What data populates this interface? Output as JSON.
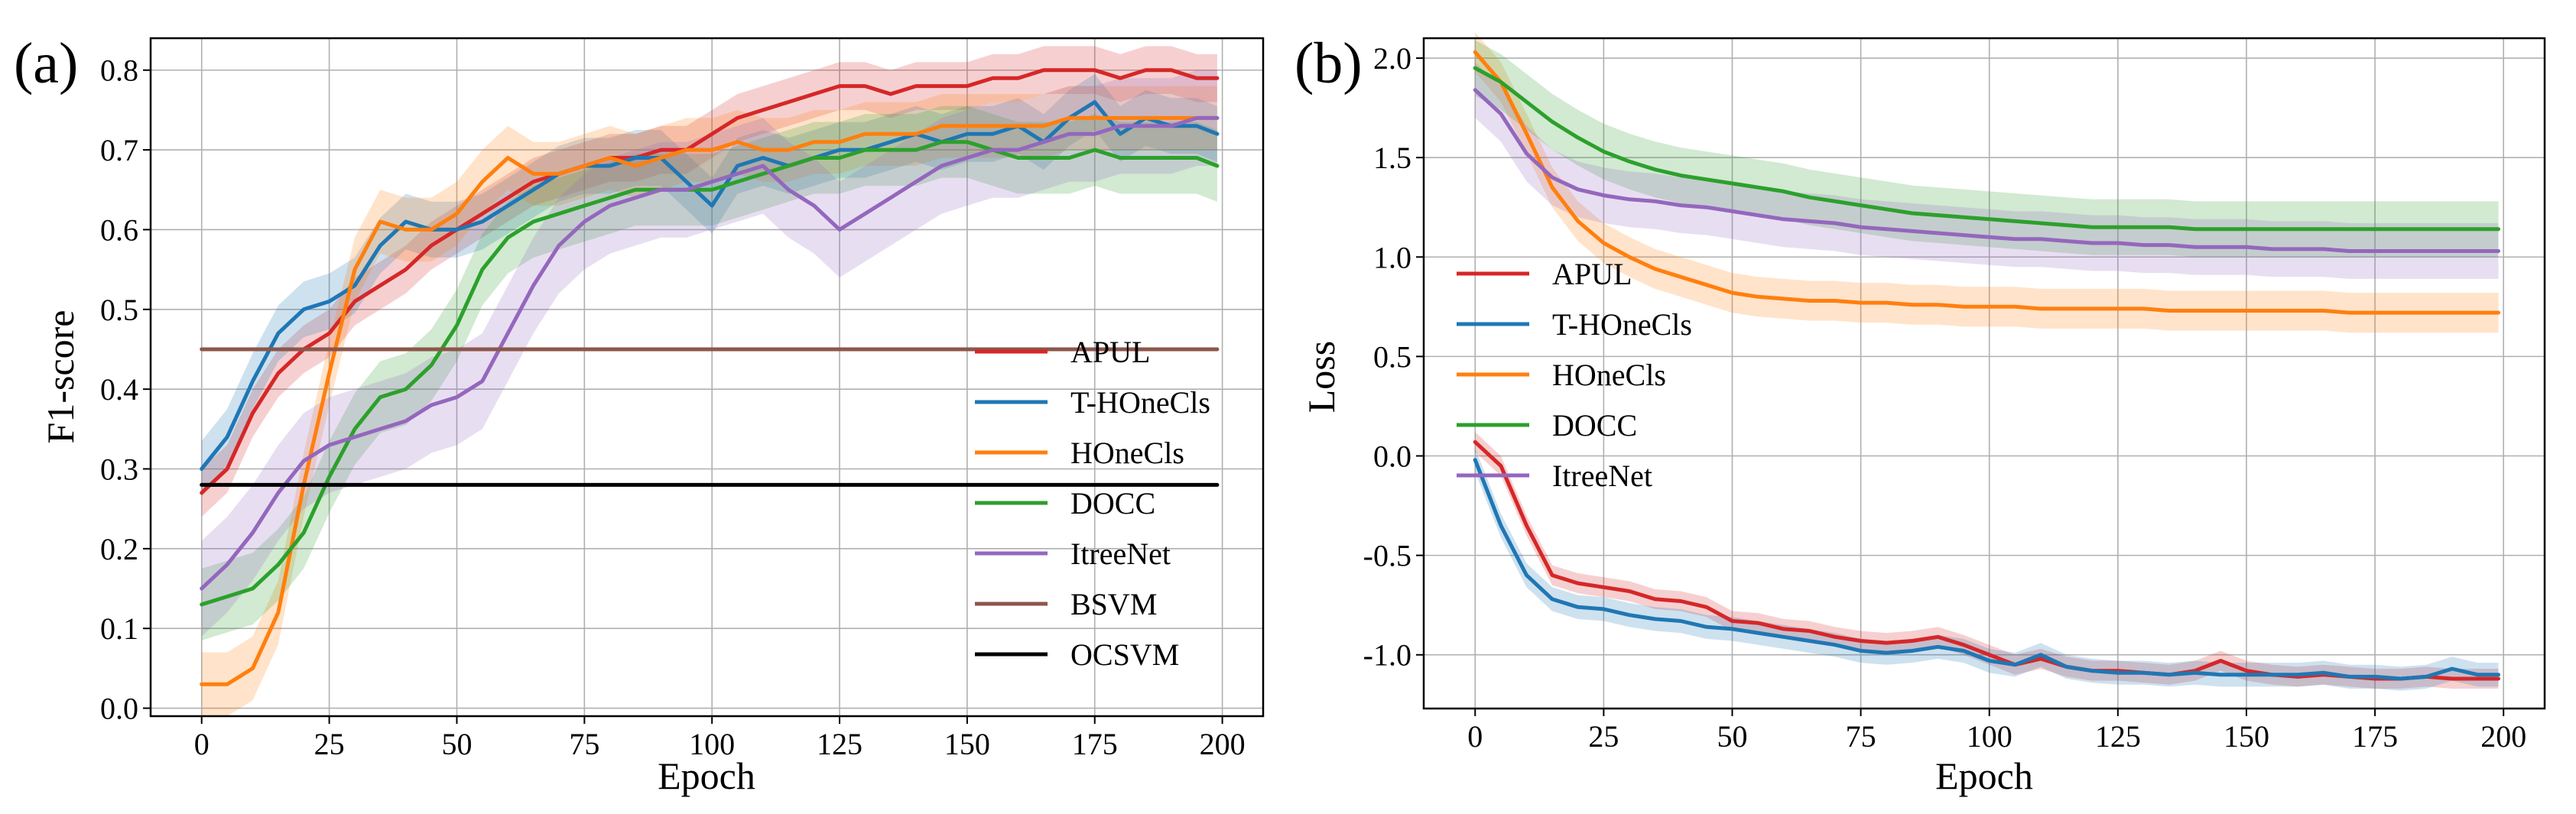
{
  "figure": {
    "colors": {
      "APUL": "#d62728",
      "T-HOneCls": "#1f77b4",
      "HOneCls": "#ff7f0e",
      "DOCC": "#2ca02c",
      "ItreeNet": "#9467bd",
      "BSVM": "#8c564b",
      "OCSVM": "#000000"
    }
  },
  "chart_data": [
    {
      "id": "a",
      "panel_label": "(a)",
      "type": "line",
      "xlabel": "Epoch",
      "ylabel": "F1-score",
      "xlim": [
        -10,
        208
      ],
      "ylim": [
        -0.01,
        0.84
      ],
      "xticks": [
        0,
        25,
        50,
        75,
        100,
        125,
        150,
        175,
        200
      ],
      "yticks": [
        0.0,
        0.1,
        0.2,
        0.3,
        0.4,
        0.5,
        0.6,
        0.7,
        0.8
      ],
      "ytick_labels": [
        "0.0",
        "0.1",
        "0.2",
        "0.3",
        "0.4",
        "0.5",
        "0.6",
        "0.7",
        "0.8"
      ],
      "grid": true,
      "legend_position": "lower-right",
      "legend": [
        "APUL",
        "T-HOneCls",
        "HOneCls",
        "DOCC",
        "ItreeNet",
        "BSVM",
        "OCSVM"
      ],
      "x": [
        0,
        5,
        10,
        15,
        20,
        25,
        30,
        35,
        40,
        45,
        50,
        55,
        60,
        65,
        70,
        75,
        80,
        85,
        90,
        95,
        100,
        105,
        110,
        115,
        120,
        125,
        130,
        135,
        140,
        145,
        150,
        155,
        160,
        165,
        170,
        175,
        180,
        185,
        190,
        195,
        199
      ],
      "series": [
        {
          "name": "APUL",
          "values": [
            0.27,
            0.3,
            0.37,
            0.42,
            0.45,
            0.47,
            0.51,
            0.53,
            0.55,
            0.58,
            0.6,
            0.62,
            0.64,
            0.66,
            0.67,
            0.68,
            0.69,
            0.69,
            0.7,
            0.7,
            0.72,
            0.74,
            0.75,
            0.76,
            0.77,
            0.78,
            0.78,
            0.77,
            0.78,
            0.78,
            0.78,
            0.79,
            0.79,
            0.8,
            0.8,
            0.8,
            0.79,
            0.8,
            0.8,
            0.79,
            0.79
          ],
          "band": 0.03
        },
        {
          "name": "T-HOneCls",
          "values": [
            0.3,
            0.34,
            0.41,
            0.47,
            0.5,
            0.51,
            0.53,
            0.58,
            0.61,
            0.6,
            0.6,
            0.61,
            0.63,
            0.65,
            0.67,
            0.68,
            0.68,
            0.69,
            0.69,
            0.66,
            0.63,
            0.68,
            0.69,
            0.68,
            0.69,
            0.7,
            0.7,
            0.71,
            0.72,
            0.71,
            0.72,
            0.72,
            0.73,
            0.71,
            0.74,
            0.76,
            0.72,
            0.74,
            0.73,
            0.73,
            0.72
          ],
          "band": 0.035
        },
        {
          "name": "HOneCls",
          "values": [
            0.03,
            0.03,
            0.05,
            0.12,
            0.28,
            0.42,
            0.55,
            0.61,
            0.6,
            0.6,
            0.62,
            0.66,
            0.69,
            0.67,
            0.67,
            0.68,
            0.69,
            0.68,
            0.69,
            0.7,
            0.7,
            0.71,
            0.7,
            0.7,
            0.71,
            0.71,
            0.72,
            0.72,
            0.72,
            0.73,
            0.73,
            0.73,
            0.73,
            0.73,
            0.74,
            0.74,
            0.74,
            0.74,
            0.74,
            0.74,
            0.74
          ],
          "band": 0.04
        },
        {
          "name": "DOCC",
          "values": [
            0.13,
            0.14,
            0.15,
            0.18,
            0.22,
            0.29,
            0.35,
            0.39,
            0.4,
            0.43,
            0.48,
            0.55,
            0.59,
            0.61,
            0.62,
            0.63,
            0.64,
            0.65,
            0.65,
            0.65,
            0.65,
            0.66,
            0.67,
            0.68,
            0.69,
            0.69,
            0.7,
            0.7,
            0.7,
            0.71,
            0.71,
            0.7,
            0.69,
            0.69,
            0.69,
            0.7,
            0.69,
            0.69,
            0.69,
            0.69,
            0.68
          ],
          "band": 0.045
        },
        {
          "name": "ItreeNet",
          "values": [
            0.15,
            0.18,
            0.22,
            0.27,
            0.31,
            0.33,
            0.34,
            0.35,
            0.36,
            0.38,
            0.39,
            0.41,
            0.47,
            0.53,
            0.58,
            0.61,
            0.63,
            0.64,
            0.65,
            0.65,
            0.66,
            0.67,
            0.68,
            0.65,
            0.63,
            0.6,
            0.62,
            0.64,
            0.66,
            0.68,
            0.69,
            0.7,
            0.7,
            0.71,
            0.72,
            0.72,
            0.73,
            0.73,
            0.73,
            0.74,
            0.74
          ],
          "band": 0.06
        },
        {
          "name": "BSVM",
          "values": [
            0.45,
            0.45,
            0.45,
            0.45,
            0.45,
            0.45,
            0.45,
            0.45,
            0.45,
            0.45,
            0.45,
            0.45,
            0.45,
            0.45,
            0.45,
            0.45,
            0.45,
            0.45,
            0.45,
            0.45,
            0.45,
            0.45,
            0.45,
            0.45,
            0.45,
            0.45,
            0.45,
            0.45,
            0.45,
            0.45,
            0.45,
            0.45,
            0.45,
            0.45,
            0.45,
            0.45,
            0.45,
            0.45,
            0.45,
            0.45,
            0.45
          ],
          "band": 0
        },
        {
          "name": "OCSVM",
          "values": [
            0.28,
            0.28,
            0.28,
            0.28,
            0.28,
            0.28,
            0.28,
            0.28,
            0.28,
            0.28,
            0.28,
            0.28,
            0.28,
            0.28,
            0.28,
            0.28,
            0.28,
            0.28,
            0.28,
            0.28,
            0.28,
            0.28,
            0.28,
            0.28,
            0.28,
            0.28,
            0.28,
            0.28,
            0.28,
            0.28,
            0.28,
            0.28,
            0.28,
            0.28,
            0.28,
            0.28,
            0.28,
            0.28,
            0.28,
            0.28,
            0.28
          ],
          "band": 0
        }
      ]
    },
    {
      "id": "b",
      "panel_label": "(b)",
      "type": "line",
      "xlabel": "Epoch",
      "ylabel": "Loss",
      "xlim": [
        -10,
        208
      ],
      "ylim": [
        -1.27,
        2.1
      ],
      "xticks": [
        0,
        25,
        50,
        75,
        100,
        125,
        150,
        175,
        200
      ],
      "yticks": [
        -1.0,
        -0.5,
        0.0,
        0.5,
        1.0,
        1.5,
        2.0
      ],
      "ytick_labels": [
        "-1.0",
        "-0.5",
        "0.0",
        "0.5",
        "1.0",
        "1.5",
        "2.0"
      ],
      "grid": true,
      "legend_position": "center-left",
      "legend": [
        "APUL",
        "T-HOneCls",
        "HOneCls",
        "DOCC",
        "ItreeNet"
      ],
      "x": [
        0,
        5,
        10,
        15,
        20,
        25,
        30,
        35,
        40,
        45,
        50,
        55,
        60,
        65,
        70,
        75,
        80,
        85,
        90,
        95,
        100,
        105,
        110,
        115,
        120,
        125,
        130,
        135,
        140,
        145,
        150,
        155,
        160,
        165,
        170,
        175,
        180,
        185,
        190,
        195,
        199
      ],
      "series": [
        {
          "name": "APUL",
          "values": [
            0.07,
            -0.05,
            -0.35,
            -0.6,
            -0.64,
            -0.66,
            -0.68,
            -0.72,
            -0.73,
            -0.76,
            -0.83,
            -0.84,
            -0.87,
            -0.88,
            -0.91,
            -0.93,
            -0.94,
            -0.93,
            -0.91,
            -0.95,
            -1.0,
            -1.05,
            -1.02,
            -1.06,
            -1.08,
            -1.08,
            -1.09,
            -1.1,
            -1.08,
            -1.03,
            -1.08,
            -1.1,
            -1.11,
            -1.1,
            -1.11,
            -1.12,
            -1.12,
            -1.11,
            -1.12,
            -1.12,
            -1.12
          ],
          "band": 0.05
        },
        {
          "name": "T-HOneCls",
          "values": [
            -0.02,
            -0.35,
            -0.6,
            -0.72,
            -0.76,
            -0.77,
            -0.8,
            -0.82,
            -0.83,
            -0.86,
            -0.87,
            -0.89,
            -0.91,
            -0.93,
            -0.95,
            -0.98,
            -0.99,
            -0.98,
            -0.96,
            -0.98,
            -1.03,
            -1.05,
            -1.0,
            -1.06,
            -1.08,
            -1.09,
            -1.09,
            -1.1,
            -1.09,
            -1.1,
            -1.1,
            -1.1,
            -1.1,
            -1.09,
            -1.11,
            -1.11,
            -1.12,
            -1.11,
            -1.07,
            -1.1,
            -1.1
          ],
          "band": 0.06
        },
        {
          "name": "HOneCls",
          "values": [
            2.03,
            1.88,
            1.62,
            1.35,
            1.18,
            1.07,
            1.0,
            0.94,
            0.9,
            0.86,
            0.82,
            0.8,
            0.79,
            0.78,
            0.78,
            0.77,
            0.77,
            0.76,
            0.76,
            0.75,
            0.75,
            0.75,
            0.74,
            0.74,
            0.74,
            0.74,
            0.74,
            0.73,
            0.73,
            0.73,
            0.73,
            0.73,
            0.73,
            0.73,
            0.72,
            0.72,
            0.72,
            0.72,
            0.72,
            0.72,
            0.72
          ],
          "band": 0.1
        },
        {
          "name": "DOCC",
          "values": [
            1.95,
            1.88,
            1.78,
            1.68,
            1.6,
            1.53,
            1.48,
            1.44,
            1.41,
            1.39,
            1.37,
            1.35,
            1.33,
            1.3,
            1.28,
            1.26,
            1.24,
            1.22,
            1.21,
            1.2,
            1.19,
            1.18,
            1.17,
            1.16,
            1.15,
            1.15,
            1.15,
            1.15,
            1.14,
            1.14,
            1.14,
            1.14,
            1.14,
            1.14,
            1.14,
            1.14,
            1.14,
            1.14,
            1.14,
            1.14,
            1.14
          ],
          "band": 0.14
        },
        {
          "name": "ItreeNet",
          "values": [
            1.84,
            1.72,
            1.52,
            1.4,
            1.34,
            1.31,
            1.29,
            1.28,
            1.26,
            1.25,
            1.23,
            1.21,
            1.19,
            1.18,
            1.17,
            1.15,
            1.14,
            1.13,
            1.12,
            1.11,
            1.1,
            1.09,
            1.09,
            1.08,
            1.07,
            1.07,
            1.06,
            1.06,
            1.05,
            1.05,
            1.05,
            1.04,
            1.04,
            1.04,
            1.03,
            1.03,
            1.03,
            1.03,
            1.03,
            1.03,
            1.03
          ],
          "band": 0.14
        }
      ]
    }
  ]
}
